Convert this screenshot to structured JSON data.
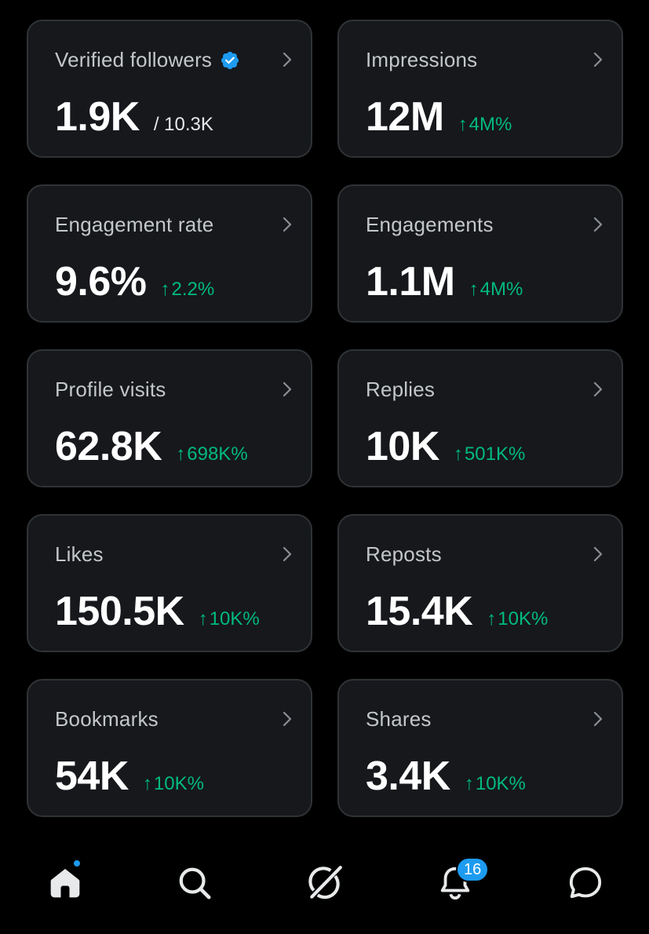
{
  "colors": {
    "accent": "#1d9bf0",
    "positive": "#00ba7c",
    "card_bg": "#16181c",
    "card_border": "#2f3336"
  },
  "cards": [
    {
      "label": "Verified followers",
      "value": "1.9K",
      "sub": "/ 10.3K",
      "verified_icon": "verified-badge-icon"
    },
    {
      "label": "Impressions",
      "value": "12M",
      "delta": "4M%"
    },
    {
      "label": "Engagement rate",
      "value": "9.6%",
      "delta": "2.2%"
    },
    {
      "label": "Engagements",
      "value": "1.1M",
      "delta": "4M%"
    },
    {
      "label": "Profile visits",
      "value": "62.8K",
      "delta": "698K%"
    },
    {
      "label": "Replies",
      "value": "10K",
      "delta": "501K%"
    },
    {
      "label": "Likes",
      "value": "150.5K",
      "delta": "10K%"
    },
    {
      "label": "Reposts",
      "value": "15.4K",
      "delta": "10K%"
    },
    {
      "label": "Bookmarks",
      "value": "54K",
      "delta": "10K%"
    },
    {
      "label": "Shares",
      "value": "3.4K",
      "delta": "10K%"
    }
  ],
  "tabbar": {
    "items": [
      "home-icon",
      "search-icon",
      "grok-icon",
      "notifications-icon",
      "messages-icon"
    ],
    "notifications_count": "16"
  }
}
